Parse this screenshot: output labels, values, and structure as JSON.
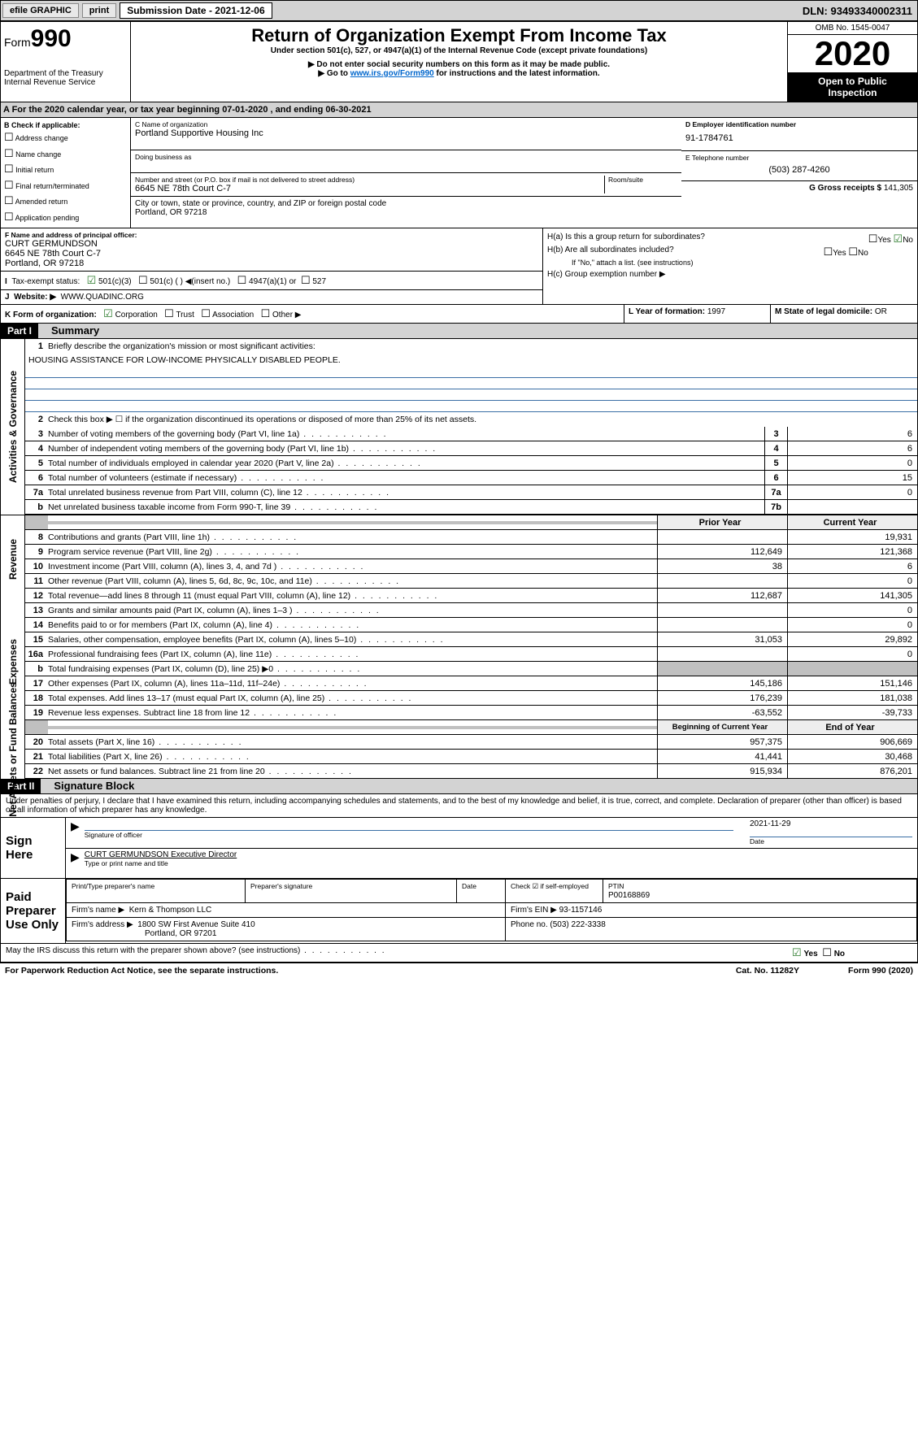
{
  "topbar": {
    "efile": "efile GRAPHIC",
    "print": "print",
    "sub_label": "Submission Date - 2021-12-06",
    "dln": "DLN: 93493340002311"
  },
  "header": {
    "form_prefix": "Form",
    "form_num": "990",
    "dept": "Department of the Treasury",
    "irs": "Internal Revenue Service",
    "title": "Return of Organization Exempt From Income Tax",
    "subtitle": "Under section 501(c), 527, or 4947(a)(1) of the Internal Revenue Code (except private foundations)",
    "note1": "▶ Do not enter social security numbers on this form as it may be made public.",
    "note2_pre": "▶ Go to ",
    "note2_link": "www.irs.gov/Form990",
    "note2_post": " for instructions and the latest information.",
    "omb": "OMB No. 1545-0047",
    "year": "2020",
    "open1": "Open to Public",
    "open2": "Inspection"
  },
  "period": "A For the 2020 calendar year, or tax year beginning 07-01-2020    , and ending 06-30-2021",
  "boxB": {
    "title": "B Check if applicable:",
    "items": [
      "Address change",
      "Name change",
      "Initial return",
      "Final return/terminated",
      "Amended return",
      "Application pending"
    ]
  },
  "boxC": {
    "name_lbl": "C Name of organization",
    "name": "Portland Supportive Housing Inc",
    "dba_lbl": "Doing business as",
    "street_lbl": "Number and street (or P.O. box if mail is not delivered to street address)",
    "room_lbl": "Room/suite",
    "street": "6645 NE 78th Court C-7",
    "city_lbl": "City or town, state or province, country, and ZIP or foreign postal code",
    "city": "Portland, OR  97218"
  },
  "boxD": {
    "lbl": "D Employer identification number",
    "val": "91-1784761"
  },
  "boxE": {
    "lbl": "E Telephone number",
    "val": "(503) 287-4260"
  },
  "boxG": {
    "lbl": "G Gross receipts $",
    "val": "141,305"
  },
  "boxF": {
    "lbl": "F  Name and address of principal officer:",
    "name": "CURT GERMUNDSON",
    "l1": "6645 NE 78th Court C-7",
    "l2": "Portland, OR  97218"
  },
  "boxH": {
    "a": "H(a)  Is this a group return for subordinates?",
    "b": "H(b)  Are all subordinates included?",
    "bnote": "If \"No,\" attach a list. (see instructions)",
    "c": "H(c)  Group exemption number ▶"
  },
  "boxI": {
    "lbl": "Tax-exempt status:",
    "opt1": "501(c)(3)",
    "opt2": "501(c) (  ) ◀(insert no.)",
    "opt3": "4947(a)(1) or",
    "opt4": "527"
  },
  "boxJ": {
    "lbl": "Website: ▶",
    "val": "WWW.QUADINC.ORG"
  },
  "boxK": {
    "lbl": "K Form of organization:",
    "corp": "Corporation",
    "trust": "Trust",
    "assoc": "Association",
    "other": "Other ▶"
  },
  "boxL": {
    "lbl": "L Year of formation:",
    "val": "1997"
  },
  "boxM": {
    "lbl": "M State of legal domicile:",
    "val": "OR"
  },
  "part1": {
    "hdr": "Part I",
    "title": "Summary",
    "l1": "Briefly describe the organization's mission or most significant activities:",
    "mission": "HOUSING ASSISTANCE FOR LOW-INCOME PHYSICALLY DISABLED PEOPLE.",
    "l2": "Check this box ▶ ☐  if the organization discontinued its operations or disposed of more than 25% of its net assets.",
    "lines_gov": [
      {
        "n": "3",
        "d": "Number of voting members of the governing body (Part VI, line 1a)",
        "box": "3",
        "v": "6"
      },
      {
        "n": "4",
        "d": "Number of independent voting members of the governing body (Part VI, line 1b)",
        "box": "4",
        "v": "6"
      },
      {
        "n": "5",
        "d": "Total number of individuals employed in calendar year 2020 (Part V, line 2a)",
        "box": "5",
        "v": "0"
      },
      {
        "n": "6",
        "d": "Total number of volunteers (estimate if necessary)",
        "box": "6",
        "v": "15"
      },
      {
        "n": "7a",
        "d": "Total unrelated business revenue from Part VIII, column (C), line 12",
        "box": "7a",
        "v": "0"
      },
      {
        "n": "b",
        "d": "Net unrelated business taxable income from Form 990-T, line 39",
        "box": "7b",
        "v": ""
      }
    ],
    "col_prior": "Prior Year",
    "col_curr": "Current Year",
    "lines_rev": [
      {
        "n": "8",
        "d": "Contributions and grants (Part VIII, line 1h)",
        "p": "",
        "c": "19,931"
      },
      {
        "n": "9",
        "d": "Program service revenue (Part VIII, line 2g)",
        "p": "112,649",
        "c": "121,368"
      },
      {
        "n": "10",
        "d": "Investment income (Part VIII, column (A), lines 3, 4, and 7d )",
        "p": "38",
        "c": "6"
      },
      {
        "n": "11",
        "d": "Other revenue (Part VIII, column (A), lines 5, 6d, 8c, 9c, 10c, and 11e)",
        "p": "",
        "c": "0"
      },
      {
        "n": "12",
        "d": "Total revenue—add lines 8 through 11 (must equal Part VIII, column (A), line 12)",
        "p": "112,687",
        "c": "141,305"
      }
    ],
    "lines_exp": [
      {
        "n": "13",
        "d": "Grants and similar amounts paid (Part IX, column (A), lines 1–3 )",
        "p": "",
        "c": "0"
      },
      {
        "n": "14",
        "d": "Benefits paid to or for members (Part IX, column (A), line 4)",
        "p": "",
        "c": "0"
      },
      {
        "n": "15",
        "d": "Salaries, other compensation, employee benefits (Part IX, column (A), lines 5–10)",
        "p": "31,053",
        "c": "29,892"
      },
      {
        "n": "16a",
        "d": "Professional fundraising fees (Part IX, column (A), line 11e)",
        "p": "",
        "c": "0"
      },
      {
        "n": "b",
        "d": "Total fundraising expenses (Part IX, column (D), line 25) ▶0",
        "p": "GREY",
        "c": "GREY"
      },
      {
        "n": "17",
        "d": "Other expenses (Part IX, column (A), lines 11a–11d, 11f–24e)",
        "p": "145,186",
        "c": "151,146"
      },
      {
        "n": "18",
        "d": "Total expenses. Add lines 13–17 (must equal Part IX, column (A), line 25)",
        "p": "176,239",
        "c": "181,038"
      },
      {
        "n": "19",
        "d": "Revenue less expenses. Subtract line 18 from line 12",
        "p": "-63,552",
        "c": "-39,733"
      }
    ],
    "col_begin": "Beginning of Current Year",
    "col_end": "End of Year",
    "lines_net": [
      {
        "n": "20",
        "d": "Total assets (Part X, line 16)",
        "p": "957,375",
        "c": "906,669"
      },
      {
        "n": "21",
        "d": "Total liabilities (Part X, line 26)",
        "p": "41,441",
        "c": "30,468"
      },
      {
        "n": "22",
        "d": "Net assets or fund balances. Subtract line 21 from line 20",
        "p": "915,934",
        "c": "876,201"
      }
    ],
    "side_gov": "Activities & Governance",
    "side_rev": "Revenue",
    "side_exp": "Expenses",
    "side_net": "Net Assets or Fund Balances"
  },
  "part2": {
    "hdr": "Part II",
    "title": "Signature Block",
    "decl": "Under penalties of perjury, I declare that I have examined this return, including accompanying schedules and statements, and to the best of my knowledge and belief, it is true, correct, and complete. Declaration of preparer (other than officer) is based on all information of which preparer has any knowledge.",
    "sign_here": "Sign Here",
    "sig_officer": "Signature of officer",
    "date": "Date",
    "date_val": "2021-11-29",
    "officer": "CURT GERMUNDSON Executive Director",
    "type_name": "Type or print name and title",
    "paid": "Paid Preparer Use Only",
    "prep_name_lbl": "Print/Type preparer's name",
    "prep_sig_lbl": "Preparer's signature",
    "prep_date_lbl": "Date",
    "self_emp": "Check ☑ if self-employed",
    "ptin_lbl": "PTIN",
    "ptin": "P00168869",
    "firm_name_lbl": "Firm's name    ▶",
    "firm_name": "Kern & Thompson LLC",
    "firm_ein_lbl": "Firm's EIN ▶",
    "firm_ein": "93-1157146",
    "firm_addr_lbl": "Firm's address ▶",
    "firm_addr1": "1800 SW First Avenue Suite 410",
    "firm_addr2": "Portland, OR  97201",
    "phone_lbl": "Phone no.",
    "phone": "(503) 222-3338",
    "discuss": "May the IRS discuss this return with the preparer shown above? (see instructions)",
    "yes": "Yes",
    "no": "No"
  },
  "footer": {
    "l": "For Paperwork Reduction Act Notice, see the separate instructions.",
    "m": "Cat. No. 11282Y",
    "r": "Form 990 (2020)"
  }
}
